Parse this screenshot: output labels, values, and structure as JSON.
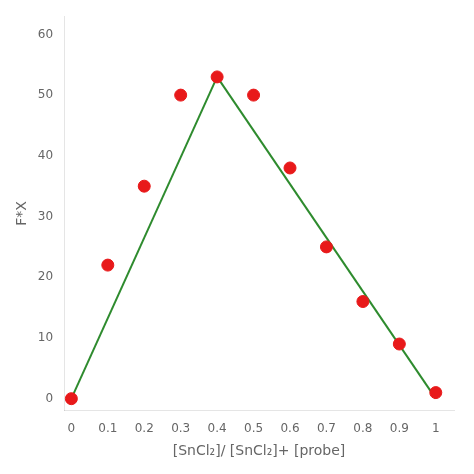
{
  "chart_data": {
    "type": "scatter",
    "xlabel": "[SnCl₂]/ [SnCl₂]+ [probe]",
    "ylabel": "F*X",
    "xlim": [
      -0.02,
      1.05
    ],
    "ylim": [
      -2,
      63
    ],
    "xticks": [
      0,
      0.1,
      0.2,
      0.3,
      0.4,
      0.5,
      0.6,
      0.7,
      0.8,
      0.9,
      1
    ],
    "yticks": [
      0,
      10,
      20,
      30,
      40,
      50,
      60
    ],
    "grid": false,
    "series": [
      {
        "type": "line",
        "color": "#2e8b2e",
        "marker": "none",
        "line_style": "solid",
        "x": [
          0,
          0.4
        ],
        "values": [
          0,
          53
        ]
      },
      {
        "type": "line",
        "color": "#2e8b2e",
        "marker": "none",
        "line_style": "solid",
        "x": [
          0.4,
          1.0
        ],
        "values": [
          53,
          0
        ]
      },
      {
        "type": "scatter",
        "color": "#e8191a",
        "marker": "circle",
        "x": [
          0,
          0.1,
          0.2,
          0.3,
          0.4,
          0.5,
          0.6,
          0.7,
          0.8,
          0.9,
          1.0
        ],
        "values": [
          0,
          22,
          35,
          50,
          53,
          50,
          38,
          25,
          16,
          9,
          1
        ]
      }
    ]
  }
}
